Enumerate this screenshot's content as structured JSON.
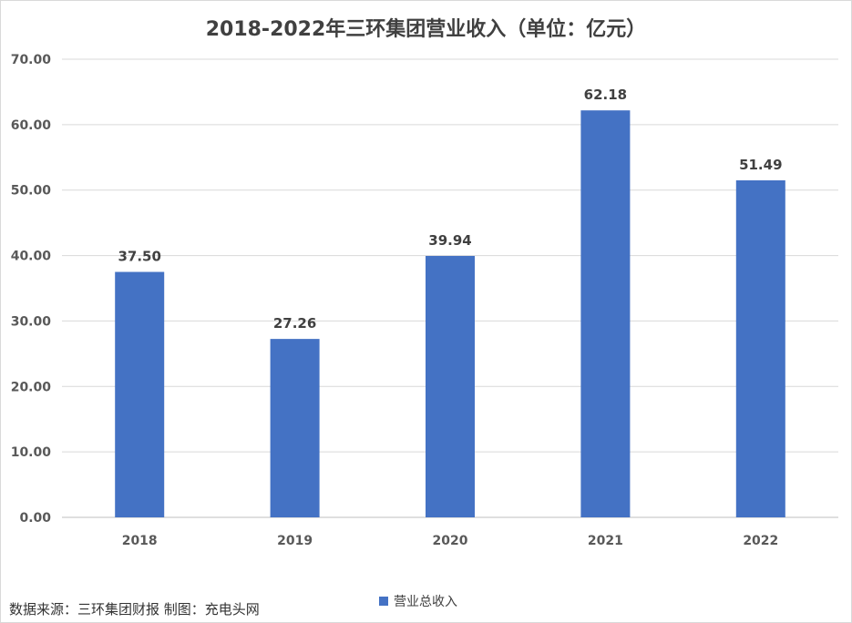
{
  "chart_data": {
    "type": "bar",
    "title": "2018-2022年三环集团营业收入（单位：亿元）",
    "categories": [
      "2018",
      "2019",
      "2020",
      "2021",
      "2022"
    ],
    "series": [
      {
        "name": "营业总收入",
        "values": [
          37.5,
          27.26,
          39.94,
          62.18,
          51.49
        ]
      }
    ],
    "data_labels": [
      "37.50",
      "27.26",
      "39.94",
      "62.18",
      "51.49"
    ],
    "y_ticks": [
      "0.00",
      "10.00",
      "20.00",
      "30.00",
      "40.00",
      "50.00",
      "60.00",
      "70.00"
    ],
    "ylim": [
      0,
      70
    ],
    "grid": true,
    "legend_position": "bottom",
    "bar_color": "#4472c4"
  },
  "footer": {
    "source_note": "数据来源：三环集团财报  制图：充电头网"
  }
}
